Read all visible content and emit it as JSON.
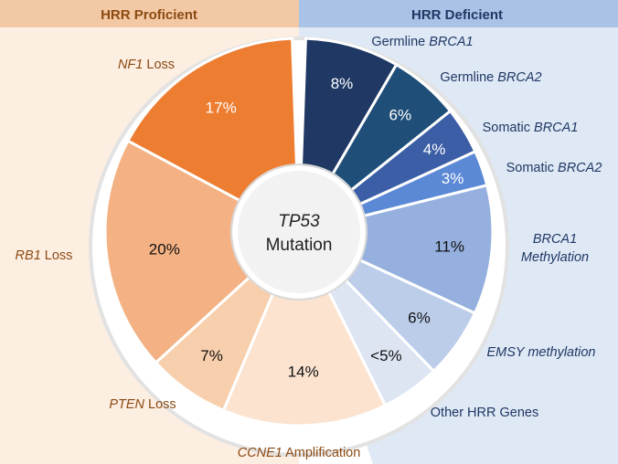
{
  "chart_data": {
    "type": "pie",
    "center_label": {
      "line1": "TP53",
      "line2": "Mutation"
    },
    "groups": [
      {
        "name": "HRR Proficient",
        "header_color": "#f3c8a4",
        "panel_color": "#fdeee2",
        "text_color": "#8b4a12"
      },
      {
        "name": "HRR Deficient",
        "header_color": "#a9c2e6",
        "panel_color": "#dfe8f5",
        "text_color": "#1f3864"
      }
    ],
    "slices": [
      {
        "group": 1,
        "label_italic": "Germline ",
        "label_em": "BRCA1",
        "label_rest": "",
        "value": 8,
        "display": "8%",
        "color": "#1f3864",
        "pct_color": "#ffffff"
      },
      {
        "group": 1,
        "label_italic": "Germline ",
        "label_em": "BRCA2",
        "label_rest": "",
        "value": 6,
        "display": "6%",
        "color": "#1f4e79",
        "pct_color": "#ffffff"
      },
      {
        "group": 1,
        "label_italic": "Somatic ",
        "label_em": "BRCA1",
        "label_rest": "",
        "value": 4,
        "display": "4%",
        "color": "#3b5ea6",
        "pct_color": "#ffffff"
      },
      {
        "group": 1,
        "label_italic": "Somatic ",
        "label_em": "BRCA2",
        "label_rest": "",
        "value": 3,
        "display": "3%",
        "color": "#5b89d6",
        "pct_color": "#ffffff"
      },
      {
        "group": 1,
        "label_italic": "",
        "label_em": "BRCA1",
        "label_rest": "Methylation",
        "value": 11,
        "display": "11%",
        "color": "#95b0de",
        "pct_color": "#111111"
      },
      {
        "group": 1,
        "label_italic": "",
        "label_em": "EMSY methylation",
        "label_rest": "",
        "value": 6,
        "display": "6%",
        "color": "#bccde9",
        "pct_color": "#111111"
      },
      {
        "group": 1,
        "label_italic": "Other HRR Genes",
        "label_em": "",
        "label_rest": "",
        "value": 5,
        "display": "<5%",
        "color": "#dde5f3",
        "pct_color": "#111111"
      },
      {
        "group": 0,
        "label_italic": "",
        "label_em": "CCNE1",
        "label_rest": " Amplification",
        "value": 14,
        "display": "14%",
        "color": "#fbe3d0",
        "pct_color": "#111111"
      },
      {
        "group": 0,
        "label_italic": "",
        "label_em": "PTEN",
        "label_rest": " Loss",
        "value": 7,
        "display": "7%",
        "color": "#f8cfac",
        "pct_color": "#111111"
      },
      {
        "group": 0,
        "label_italic": "",
        "label_em": "RB1",
        "label_rest": " Loss",
        "value": 20,
        "display": "20%",
        "color": "#f4b183",
        "pct_color": "#111111"
      },
      {
        "group": 0,
        "label_italic": "",
        "label_em": "NF1",
        "label_rest": " Loss",
        "value": 17,
        "display": "17%",
        "color": "#ed7d31",
        "pct_color": "#ffffff"
      }
    ]
  }
}
